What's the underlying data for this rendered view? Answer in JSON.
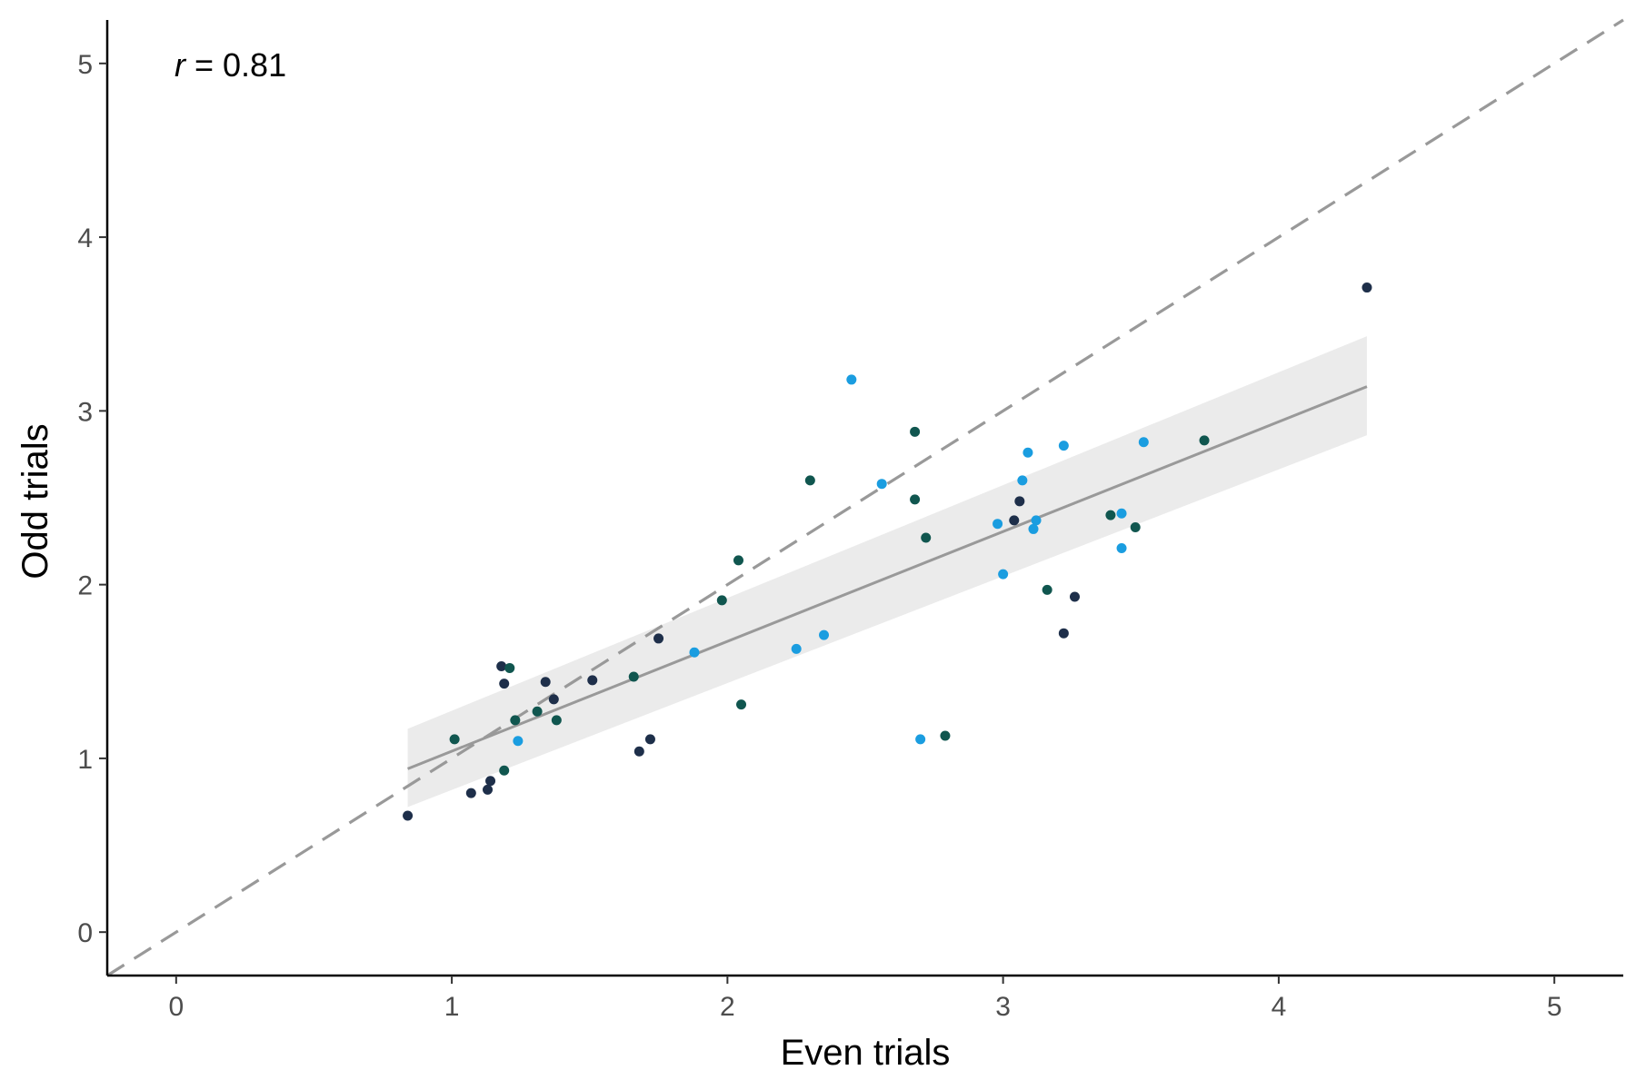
{
  "chart_data": {
    "type": "scatter",
    "title": "",
    "xlabel": "Even trials",
    "ylabel": "Odd trials",
    "xlim": [
      -0.25,
      5.25
    ],
    "ylim": [
      -0.25,
      5.25
    ],
    "x_ticks": [
      "0",
      "1",
      "2",
      "3",
      "4",
      "5"
    ],
    "y_ticks": [
      "0",
      "1",
      "2",
      "3",
      "4",
      "5"
    ],
    "grid": false,
    "annotation": {
      "symbol": "r",
      "text": " = 0.81"
    },
    "identity_line": {
      "slope": 1,
      "intercept": 0,
      "style": "dashed",
      "color": "#999999"
    },
    "regression": {
      "x_range": [
        0.84,
        4.32
      ],
      "y_at_start": 0.94,
      "y_at_end": 3.14,
      "band_lower": [
        0.72,
        2.86
      ],
      "band_upper": [
        1.17,
        3.43
      ],
      "color": "#999999",
      "band_color": "#ebebeb"
    },
    "colors": {
      "dark_navy": "#1e2f4a",
      "dark_teal": "#10564f",
      "sky_blue": "#1a9de0"
    },
    "points": [
      {
        "x": 0.84,
        "y": 0.67,
        "color": "#1e2f4a"
      },
      {
        "x": 1.01,
        "y": 1.11,
        "color": "#10564f"
      },
      {
        "x": 1.07,
        "y": 0.8,
        "color": "#1e2f4a"
      },
      {
        "x": 1.13,
        "y": 0.82,
        "color": "#1e2f4a"
      },
      {
        "x": 1.14,
        "y": 0.87,
        "color": "#1e2f4a"
      },
      {
        "x": 1.18,
        "y": 1.53,
        "color": "#1e2f4a"
      },
      {
        "x": 1.19,
        "y": 0.93,
        "color": "#10564f"
      },
      {
        "x": 1.19,
        "y": 1.43,
        "color": "#1e2f4a"
      },
      {
        "x": 1.21,
        "y": 1.52,
        "color": "#10564f"
      },
      {
        "x": 1.23,
        "y": 1.22,
        "color": "#10564f"
      },
      {
        "x": 1.24,
        "y": 1.1,
        "color": "#1a9de0"
      },
      {
        "x": 1.31,
        "y": 1.27,
        "color": "#10564f"
      },
      {
        "x": 1.34,
        "y": 1.44,
        "color": "#1e2f4a"
      },
      {
        "x": 1.37,
        "y": 1.34,
        "color": "#1e2f4a"
      },
      {
        "x": 1.38,
        "y": 1.22,
        "color": "#10564f"
      },
      {
        "x": 1.51,
        "y": 1.45,
        "color": "#1e2f4a"
      },
      {
        "x": 1.66,
        "y": 1.47,
        "color": "#10564f"
      },
      {
        "x": 1.68,
        "y": 1.04,
        "color": "#1e2f4a"
      },
      {
        "x": 1.72,
        "y": 1.11,
        "color": "#1e2f4a"
      },
      {
        "x": 1.75,
        "y": 1.69,
        "color": "#1e2f4a"
      },
      {
        "x": 1.88,
        "y": 1.61,
        "color": "#1a9de0"
      },
      {
        "x": 1.98,
        "y": 1.91,
        "color": "#10564f"
      },
      {
        "x": 2.04,
        "y": 2.14,
        "color": "#10564f"
      },
      {
        "x": 2.05,
        "y": 1.31,
        "color": "#10564f"
      },
      {
        "x": 2.25,
        "y": 1.63,
        "color": "#1a9de0"
      },
      {
        "x": 2.3,
        "y": 2.6,
        "color": "#10564f"
      },
      {
        "x": 2.35,
        "y": 1.71,
        "color": "#1a9de0"
      },
      {
        "x": 2.45,
        "y": 3.18,
        "color": "#1a9de0"
      },
      {
        "x": 2.56,
        "y": 2.58,
        "color": "#1a9de0"
      },
      {
        "x": 2.68,
        "y": 2.49,
        "color": "#10564f"
      },
      {
        "x": 2.68,
        "y": 2.88,
        "color": "#10564f"
      },
      {
        "x": 2.7,
        "y": 1.11,
        "color": "#1a9de0"
      },
      {
        "x": 2.72,
        "y": 2.27,
        "color": "#10564f"
      },
      {
        "x": 2.79,
        "y": 1.13,
        "color": "#10564f"
      },
      {
        "x": 2.98,
        "y": 2.35,
        "color": "#1a9de0"
      },
      {
        "x": 3.0,
        "y": 2.06,
        "color": "#1a9de0"
      },
      {
        "x": 3.04,
        "y": 2.37,
        "color": "#1e2f4a"
      },
      {
        "x": 3.06,
        "y": 2.48,
        "color": "#1e2f4a"
      },
      {
        "x": 3.07,
        "y": 2.6,
        "color": "#1a9de0"
      },
      {
        "x": 3.09,
        "y": 2.76,
        "color": "#1a9de0"
      },
      {
        "x": 3.11,
        "y": 2.32,
        "color": "#1a9de0"
      },
      {
        "x": 3.12,
        "y": 2.37,
        "color": "#1a9de0"
      },
      {
        "x": 3.16,
        "y": 1.97,
        "color": "#10564f"
      },
      {
        "x": 3.22,
        "y": 2.8,
        "color": "#1a9de0"
      },
      {
        "x": 3.22,
        "y": 1.72,
        "color": "#1e2f4a"
      },
      {
        "x": 3.26,
        "y": 1.93,
        "color": "#1e2f4a"
      },
      {
        "x": 3.39,
        "y": 2.4,
        "color": "#10564f"
      },
      {
        "x": 3.43,
        "y": 2.41,
        "color": "#1a9de0"
      },
      {
        "x": 3.43,
        "y": 2.21,
        "color": "#1a9de0"
      },
      {
        "x": 3.48,
        "y": 2.33,
        "color": "#10564f"
      },
      {
        "x": 3.51,
        "y": 2.82,
        "color": "#1a9de0"
      },
      {
        "x": 3.73,
        "y": 2.83,
        "color": "#10564f"
      },
      {
        "x": 4.32,
        "y": 3.71,
        "color": "#1e2f4a"
      }
    ]
  }
}
